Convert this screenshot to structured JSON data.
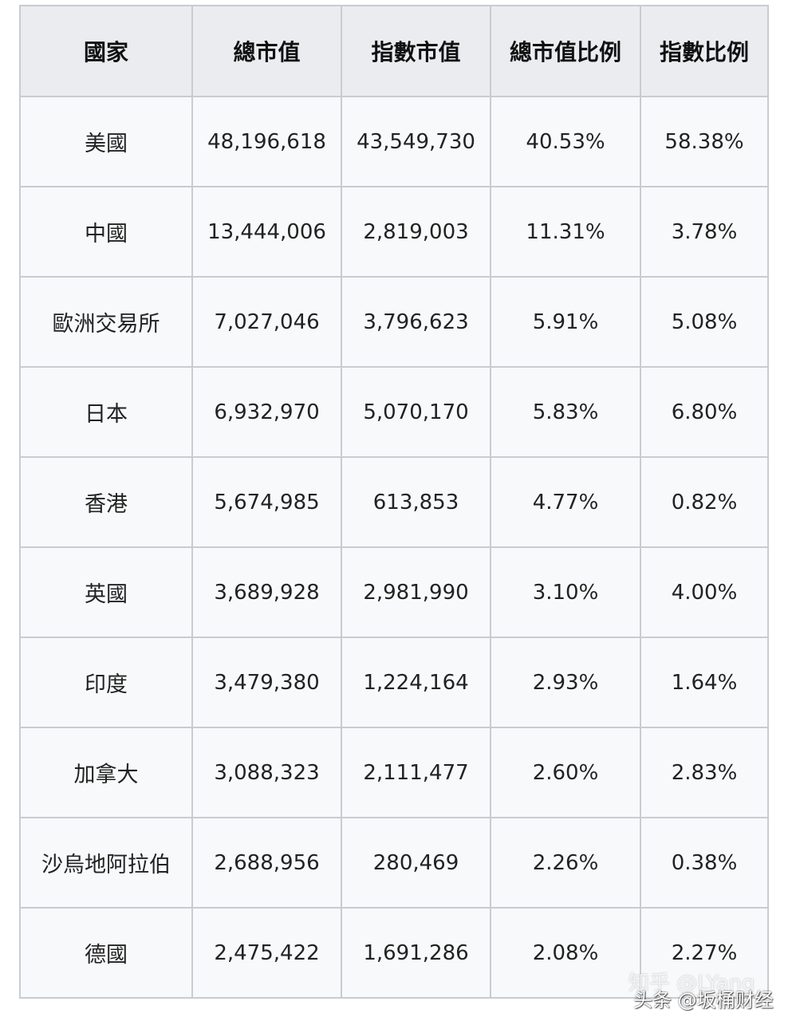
{
  "table": {
    "headers": [
      "國家",
      "總市值",
      "指數市值",
      "總市值比例",
      "指數比例"
    ],
    "rows": [
      [
        "美國",
        "48,196,618",
        "43,549,730",
        "40.53%",
        "58.38%"
      ],
      [
        "中國",
        "13,444,006",
        "2,819,003",
        "11.31%",
        "3.78%"
      ],
      [
        "歐洲交易所",
        "7,027,046",
        "3,796,623",
        "5.91%",
        "5.08%"
      ],
      [
        "日本",
        "6,932,970",
        "5,070,170",
        "5.83%",
        "6.80%"
      ],
      [
        "香港",
        "5,674,985",
        "613,853",
        "4.77%",
        "0.82%"
      ],
      [
        "英國",
        "3,689,928",
        "2,981,990",
        "3.10%",
        "4.00%"
      ],
      [
        "印度",
        "3,479,380",
        "1,224,164",
        "2.93%",
        "1.64%"
      ],
      [
        "加拿大",
        "3,088,323",
        "2,111,477",
        "2.60%",
        "2.83%"
      ],
      [
        "沙烏地阿拉伯",
        "2,688,956",
        "280,469",
        "2.26%",
        "0.38%"
      ],
      [
        "德國",
        "2,475,422",
        "1,691,286",
        "2.08%",
        "2.27%"
      ]
    ]
  },
  "watermark": {
    "line1": "知乎 @LYang",
    "line2": "头条 @坂桶财经"
  }
}
